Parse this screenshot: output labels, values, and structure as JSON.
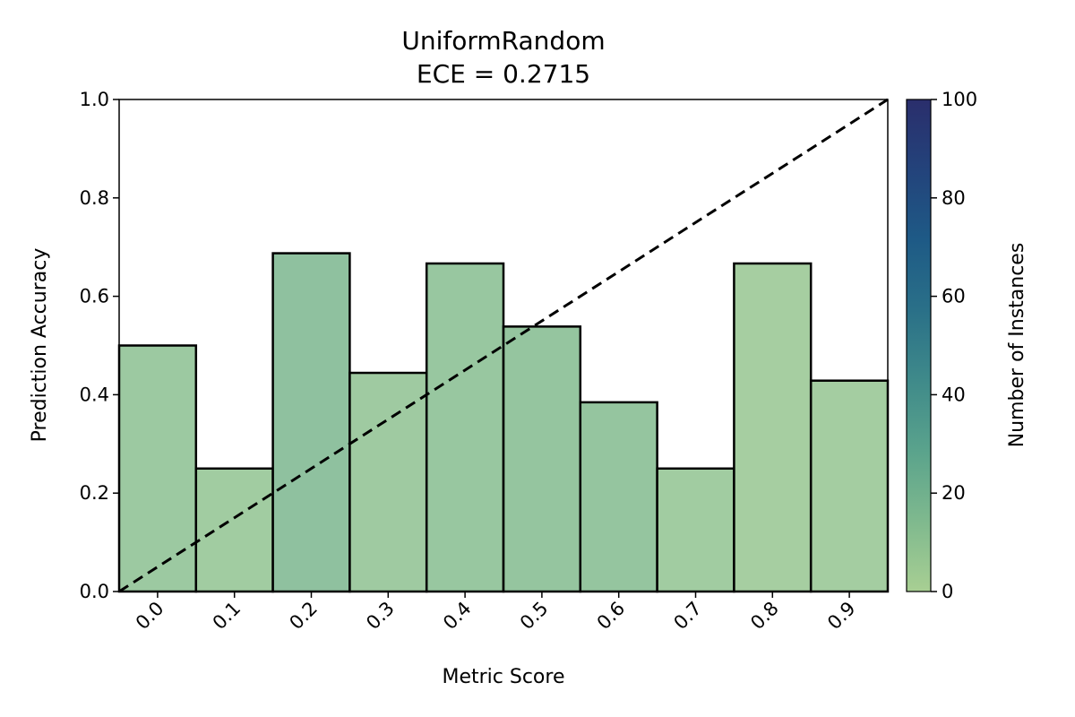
{
  "chart_data": {
    "type": "bar",
    "title": "UniformRandom",
    "subtitle": "ECE = 0.2715",
    "xlabel": "Metric Score",
    "ylabel": "Prediction Accuracy",
    "categories": [
      "0.0",
      "0.1",
      "0.2",
      "0.3",
      "0.4",
      "0.5",
      "0.6",
      "0.7",
      "0.8",
      "0.9"
    ],
    "values": [
      0.5,
      0.25,
      0.6875,
      0.4444,
      0.6667,
      0.5385,
      0.3846,
      0.25,
      0.6667,
      0.4286
    ],
    "instance_counts": [
      10,
      8,
      16,
      9,
      12,
      13,
      13,
      8,
      6,
      7
    ],
    "xlim": [
      -0.05,
      0.95
    ],
    "ylim": [
      0,
      1
    ],
    "yticks": [
      "0.0",
      "0.2",
      "0.4",
      "0.6",
      "0.8",
      "1.0"
    ],
    "reference_line": "dashed diagonal (perfect calibration)",
    "grid": false,
    "colorbar": {
      "label": "Number of Instances",
      "range": [
        0,
        100
      ],
      "ticks": [
        "0",
        "20",
        "40",
        "60",
        "80",
        "100"
      ],
      "colormap": [
        "#a8cf93",
        "#7fb98e",
        "#5aa38c",
        "#3f8a8a",
        "#2a7088",
        "#1e5a86",
        "#23437b",
        "#2a2e6c"
      ]
    },
    "colors": {
      "bar_edge": "#000000",
      "diagonal": "#000000"
    }
  }
}
